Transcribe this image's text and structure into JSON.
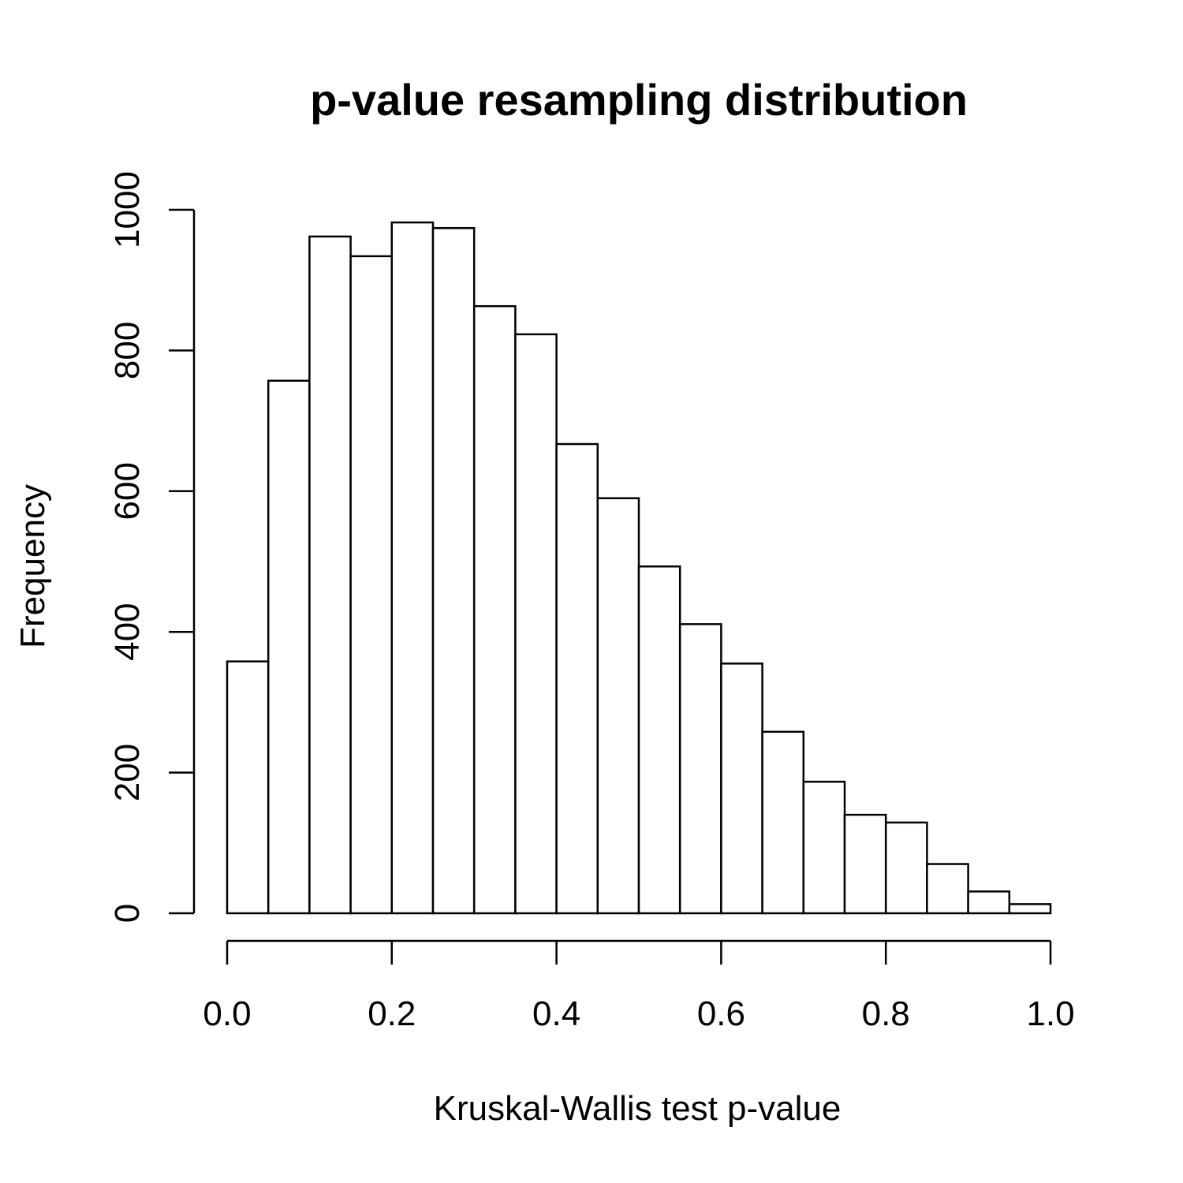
{
  "chart_data": {
    "type": "bar",
    "title": "p-value resampling distribution",
    "xlabel": "Kruskal-Wallis test p-value",
    "ylabel": "Frequency",
    "bin_edges": [
      0.0,
      0.05,
      0.1,
      0.15,
      0.2,
      0.25,
      0.3,
      0.35,
      0.4,
      0.45,
      0.5,
      0.55,
      0.6,
      0.65,
      0.7,
      0.75,
      0.8,
      0.85,
      0.9,
      0.95,
      1.0
    ],
    "values": [
      358,
      757,
      962,
      934,
      982,
      974,
      863,
      823,
      667,
      590,
      493,
      411,
      355,
      258,
      187,
      140,
      129,
      70,
      31,
      13
    ],
    "xlim": [
      0,
      1
    ],
    "ylim": [
      0,
      1000
    ],
    "x_ticks": [
      0.0,
      0.2,
      0.4,
      0.6,
      0.8,
      1.0
    ],
    "x_tick_labels": [
      "0.0",
      "0.2",
      "0.4",
      "0.6",
      "0.8",
      "1.0"
    ],
    "y_ticks": [
      0,
      200,
      400,
      600,
      800,
      1000
    ],
    "y_tick_labels": [
      "0",
      "200",
      "400",
      "600",
      "800",
      "1000"
    ],
    "grid": false,
    "legend": "none",
    "colors": {
      "bar_fill": "#ffffff",
      "bar_stroke": "#000000"
    }
  }
}
